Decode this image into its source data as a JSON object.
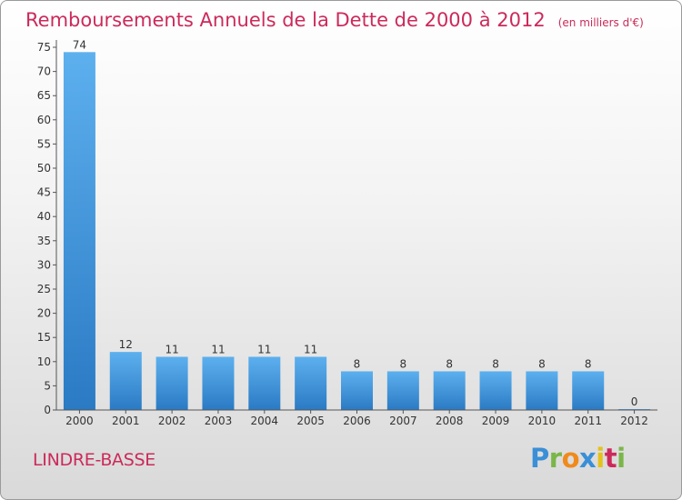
{
  "chart_data": {
    "type": "bar",
    "title": "Remboursements Annuels de la Dette de 2000 à 2012",
    "subtitle": "(en milliers d'€)",
    "categories": [
      "2000",
      "2001",
      "2002",
      "2003",
      "2004",
      "2005",
      "2006",
      "2007",
      "2008",
      "2009",
      "2010",
      "2011",
      "2012"
    ],
    "values": [
      74,
      12,
      11,
      11,
      11,
      11,
      8,
      8,
      8,
      8,
      8,
      8,
      0
    ],
    "ylim": [
      0,
      75
    ],
    "yticks": [
      0,
      5,
      10,
      15,
      20,
      25,
      30,
      35,
      40,
      45,
      50,
      55,
      60,
      65,
      70,
      75
    ],
    "xlabel": "",
    "ylabel": "",
    "grid": false,
    "legend": "none",
    "bar_color": "#3f97de"
  },
  "commune": "LINDRE-BASSE",
  "brand": {
    "letters": [
      "P",
      "r",
      "o",
      "x",
      "i",
      "t",
      "i"
    ],
    "colors": [
      "#3a8fd6",
      "#7ab648",
      "#f08a1c",
      "#3a8fd6",
      "#e4c21a",
      "#cc2a5a",
      "#7ab648"
    ]
  }
}
